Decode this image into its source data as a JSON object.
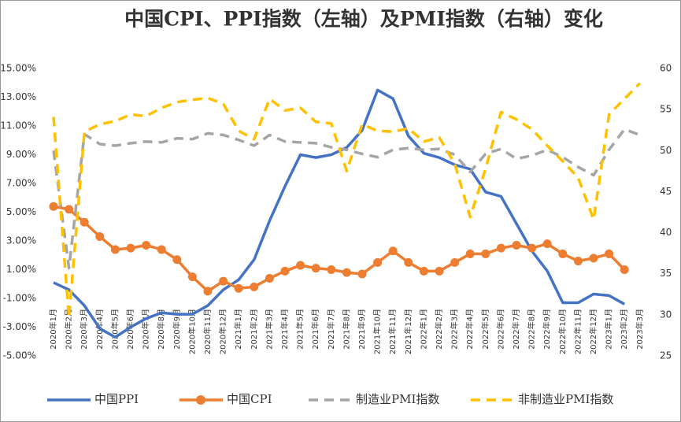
{
  "chart_data": {
    "type": "line",
    "title": "中国CPI、PPI指数（左轴）及PMI指数（右轴）变化",
    "categories": [
      "2020年1月",
      "2020年2月",
      "2020年3月",
      "2020年4月",
      "2020年5月",
      "2020年6月",
      "2020年7月",
      "2020年8月",
      "2020年9月",
      "2020年10月",
      "2020年11月",
      "2020年12月",
      "2021年1月",
      "2021年2月",
      "2021年3月",
      "2021年4月",
      "2021年5月",
      "2021年6月",
      "2021年7月",
      "2021年8月",
      "2021年9月",
      "2021年10月",
      "2021年11月",
      "2021年12月",
      "2022年1月",
      "2022年2月",
      "2022年3月",
      "2022年4月",
      "2022年5月",
      "2022年6月",
      "2022年7月",
      "2022年8月",
      "2022年9月",
      "2022年10月",
      "2022年11月",
      "2022年12月",
      "2023年1月",
      "2023年2月",
      "2023年3月"
    ],
    "series": [
      {
        "name": "中国PPI",
        "color": "#4472c4",
        "axis": "y",
        "line_style": "solid",
        "values": [
          0.1,
          -0.4,
          -1.5,
          -3.1,
          -3.7,
          -3.0,
          -2.4,
          -2.0,
          -2.1,
          -2.1,
          -1.5,
          -0.4,
          0.3,
          1.7,
          4.4,
          6.8,
          9.0,
          8.8,
          9.0,
          9.5,
          10.7,
          13.5,
          12.9,
          10.3,
          9.1,
          8.8,
          8.3,
          8.0,
          6.4,
          6.1,
          4.2,
          2.3,
          0.9,
          -1.3,
          -1.3,
          -0.7,
          -0.8,
          -1.4,
          null
        ]
      },
      {
        "name": "中国CPI",
        "color": "#ed7d31",
        "axis": "y",
        "line_style": "solid",
        "marker": "circle",
        "values": [
          5.4,
          5.2,
          4.3,
          3.3,
          2.4,
          2.5,
          2.7,
          2.4,
          1.7,
          0.5,
          -0.5,
          0.2,
          -0.3,
          -0.2,
          0.4,
          0.9,
          1.3,
          1.1,
          1.0,
          0.8,
          0.7,
          1.5,
          2.3,
          1.5,
          0.9,
          0.9,
          1.5,
          2.1,
          2.1,
          2.5,
          2.7,
          2.5,
          2.8,
          2.1,
          1.6,
          1.8,
          2.1,
          1.0,
          null
        ]
      },
      {
        "name": "制造业PMI指数",
        "color": "#a5a5a5",
        "axis": "y2",
        "line_style": "dashed",
        "values": [
          50.0,
          35.7,
          52.0,
          50.8,
          50.6,
          50.9,
          51.1,
          51.0,
          51.5,
          51.4,
          52.1,
          51.9,
          51.3,
          50.6,
          51.9,
          51.1,
          51.0,
          50.9,
          50.4,
          50.1,
          49.6,
          49.2,
          50.1,
          50.3,
          50.1,
          50.2,
          49.5,
          47.4,
          49.6,
          50.2,
          49.0,
          49.4,
          50.1,
          49.2,
          48.0,
          47.0,
          50.1,
          52.6,
          51.9
        ]
      },
      {
        "name": "非制造业PMI指数",
        "color": "#ffc000",
        "axis": "y2",
        "line_style": "dashed",
        "values": [
          54.1,
          29.6,
          52.3,
          53.2,
          53.6,
          54.4,
          54.2,
          55.2,
          55.9,
          56.2,
          56.4,
          55.7,
          52.4,
          51.4,
          56.3,
          54.9,
          55.2,
          53.5,
          53.3,
          47.5,
          53.2,
          52.4,
          52.3,
          52.7,
          51.1,
          51.6,
          48.4,
          41.9,
          47.8,
          54.7,
          53.8,
          52.6,
          50.6,
          48.7,
          46.7,
          41.6,
          54.4,
          56.3,
          58.2
        ]
      }
    ],
    "ylim": [
      -5,
      15
    ],
    "yticks": [
      {
        "value": -5,
        "label": "-5.00%"
      },
      {
        "value": -3,
        "label": "-3.00%"
      },
      {
        "value": -1,
        "label": "-1.00%"
      },
      {
        "value": 1,
        "label": "1.00%"
      },
      {
        "value": 3,
        "label": "3.00%"
      },
      {
        "value": 5,
        "label": "5.00%"
      },
      {
        "value": 7,
        "label": "7.00%"
      },
      {
        "value": 9,
        "label": "9.00%"
      },
      {
        "value": 11,
        "label": "11.00%"
      },
      {
        "value": 13,
        "label": "13.00%"
      },
      {
        "value": 15,
        "label": "15.00%"
      }
    ],
    "y2lim": [
      25,
      60
    ],
    "y2ticks": [
      25,
      30,
      35,
      40,
      45,
      50,
      55,
      60
    ],
    "grid": false,
    "legend": "bottom"
  }
}
